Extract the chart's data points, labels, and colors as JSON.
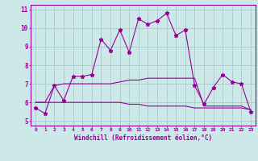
{
  "x": [
    0,
    1,
    2,
    3,
    4,
    5,
    6,
    7,
    8,
    9,
    10,
    11,
    12,
    13,
    14,
    15,
    16,
    17,
    18,
    19,
    20,
    21,
    22,
    23
  ],
  "line1": [
    5.7,
    5.4,
    6.9,
    6.1,
    7.4,
    7.4,
    7.5,
    9.4,
    8.8,
    9.9,
    8.7,
    10.5,
    10.2,
    10.4,
    10.8,
    9.6,
    9.9,
    6.9,
    5.9,
    6.8,
    7.5,
    7.1,
    7.0,
    5.5
  ],
  "line2": [
    6.0,
    6.0,
    6.9,
    7.0,
    7.0,
    7.0,
    7.0,
    7.0,
    7.0,
    7.1,
    7.2,
    7.2,
    7.3,
    7.3,
    7.3,
    7.3,
    7.3,
    7.3,
    5.8,
    5.8,
    5.8,
    5.8,
    5.8,
    5.6
  ],
  "line3": [
    6.0,
    6.0,
    6.0,
    6.0,
    6.0,
    6.0,
    6.0,
    6.0,
    6.0,
    6.0,
    5.9,
    5.9,
    5.8,
    5.8,
    5.8,
    5.8,
    5.8,
    5.7,
    5.7,
    5.7,
    5.7,
    5.7,
    5.7,
    5.6
  ],
  "color": "#990099",
  "bgcolor": "#cce8e8",
  "gridcolor": "#aacece",
  "xlabel": "Windchill (Refroidissement éolien,°C)",
  "xlim": [
    -0.5,
    23.5
  ],
  "ylim": [
    4.75,
    11.25
  ],
  "yticks": [
    5,
    6,
    7,
    8,
    9,
    10,
    11
  ],
  "xticks": [
    0,
    1,
    2,
    3,
    4,
    5,
    6,
    7,
    8,
    9,
    10,
    11,
    12,
    13,
    14,
    15,
    16,
    17,
    18,
    19,
    20,
    21,
    22,
    23
  ]
}
